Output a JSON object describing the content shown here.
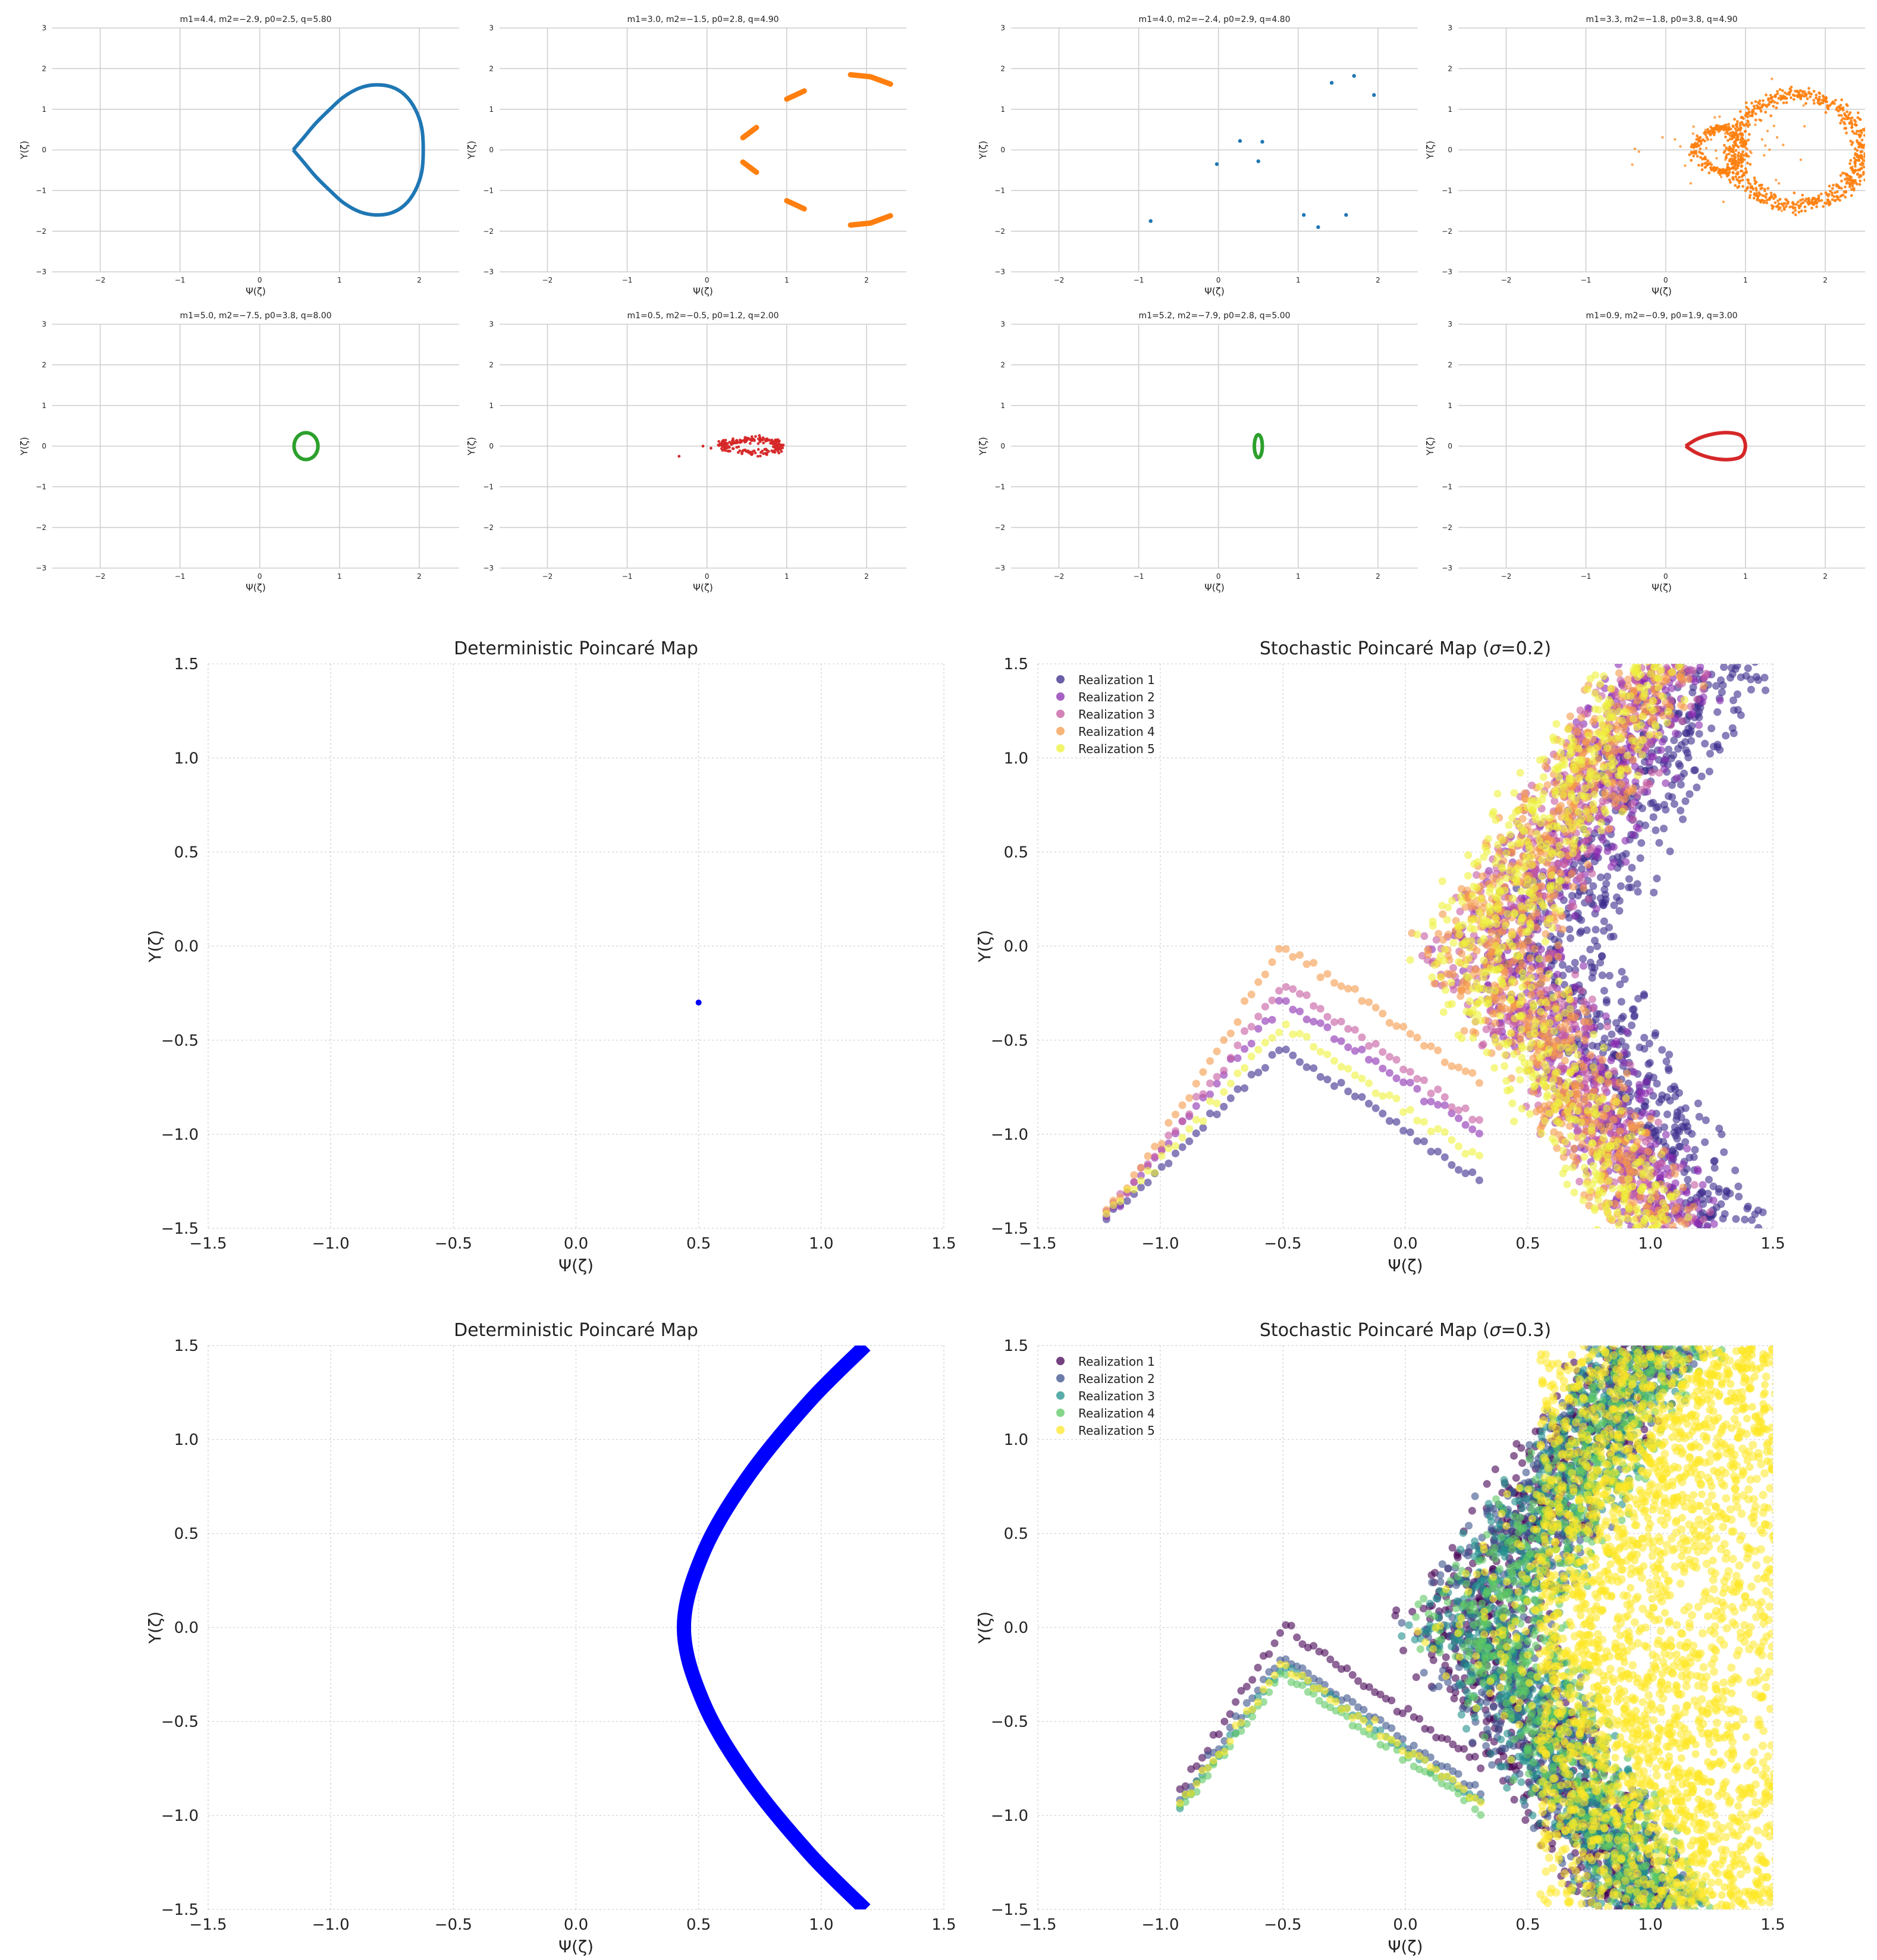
{
  "chart_data": [
    {
      "id": "small-1",
      "type": "scatter",
      "style": "curve",
      "title": "m1=4.4, m2=−2.9, p0=2.5, q=5.80",
      "xlabel": "Ψ(ζ)",
      "ylabel": "Y(ζ)",
      "xlim": [
        -2.6,
        2.5
      ],
      "ylim": [
        -3,
        3
      ],
      "xticks": [
        -2,
        -1,
        0,
        1,
        2
      ],
      "yticks": [
        -3,
        -2,
        -1,
        0,
        1,
        2,
        3
      ],
      "color": "#1f77b4",
      "grid": true,
      "points": [
        [
          0.42,
          0.0
        ],
        [
          0.55,
          0.3
        ],
        [
          0.7,
          0.65
        ],
        [
          0.88,
          1.0
        ],
        [
          1.05,
          1.3
        ],
        [
          1.25,
          1.52
        ],
        [
          1.45,
          1.6
        ],
        [
          1.65,
          1.55
        ],
        [
          1.82,
          1.35
        ],
        [
          1.95,
          1.0
        ],
        [
          2.03,
          0.55
        ],
        [
          2.05,
          0.0
        ],
        [
          2.03,
          -0.55
        ],
        [
          1.95,
          -1.0
        ],
        [
          1.82,
          -1.35
        ],
        [
          1.65,
          -1.55
        ],
        [
          1.45,
          -1.6
        ],
        [
          1.25,
          -1.52
        ],
        [
          1.05,
          -1.3
        ],
        [
          0.88,
          -1.0
        ],
        [
          0.7,
          -0.65
        ],
        [
          0.55,
          -0.3
        ],
        [
          0.42,
          0.0
        ]
      ]
    },
    {
      "id": "small-2",
      "type": "scatter",
      "style": "segments",
      "title": "m1=3.0, m2=−1.5, p0=2.8, q=4.90",
      "xlabel": "Ψ(ζ)",
      "ylabel": "Y(ζ)",
      "xlim": [
        -2.6,
        2.5
      ],
      "ylim": [
        -3,
        3
      ],
      "xticks": [
        -2,
        -1,
        0,
        1,
        2
      ],
      "yticks": [
        -3,
        -2,
        -1,
        0,
        1,
        2,
        3
      ],
      "color": "#ff7f0e",
      "grid": true,
      "segments": [
        [
          [
            0.45,
            0.3
          ],
          [
            0.62,
            0.55
          ]
        ],
        [
          [
            0.45,
            -0.3
          ],
          [
            0.62,
            -0.55
          ]
        ],
        [
          [
            1.0,
            1.25
          ],
          [
            1.22,
            1.45
          ]
        ],
        [
          [
            1.0,
            -1.25
          ],
          [
            1.22,
            -1.45
          ]
        ],
        [
          [
            1.8,
            1.85
          ],
          [
            2.05,
            1.8
          ],
          [
            2.3,
            1.62
          ]
        ],
        [
          [
            1.8,
            -1.85
          ],
          [
            2.05,
            -1.8
          ],
          [
            2.3,
            -1.62
          ]
        ]
      ]
    },
    {
      "id": "small-3",
      "type": "scatter",
      "style": "points",
      "title": "m1=4.0, m2=−2.4, p0=2.9, q=4.80",
      "xlabel": "Ψ(ζ)",
      "ylabel": "Y(ζ)",
      "xlim": [
        -2.6,
        2.5
      ],
      "ylim": [
        -3,
        3
      ],
      "xticks": [
        -2,
        -1,
        0,
        1,
        2
      ],
      "yticks": [
        -3,
        -2,
        -1,
        0,
        1,
        2,
        3
      ],
      "color": "#1f77b4",
      "grid": true,
      "points": [
        [
          -0.85,
          -1.75
        ],
        [
          -0.02,
          -0.35
        ],
        [
          0.27,
          0.22
        ],
        [
          0.5,
          -0.28
        ],
        [
          0.55,
          0.2
        ],
        [
          1.07,
          -1.6
        ],
        [
          1.25,
          -1.9
        ],
        [
          1.42,
          1.65
        ],
        [
          1.6,
          -1.6
        ],
        [
          1.7,
          1.82
        ],
        [
          1.95,
          1.35
        ]
      ]
    },
    {
      "id": "small-4",
      "type": "scatter",
      "style": "cloud",
      "title": "m1=3.3, m2=−1.8, p0=3.8, q=4.90",
      "xlabel": "Ψ(ζ)",
      "ylabel": "Y(ζ)",
      "xlim": [
        -2.6,
        2.5
      ],
      "ylim": [
        -3,
        3
      ],
      "xticks": [
        -2,
        -1,
        0,
        1,
        2
      ],
      "yticks": [
        -3,
        -2,
        -1,
        0,
        1,
        2,
        3
      ],
      "color": "#ff7f0e",
      "grid": true
    },
    {
      "id": "small-5",
      "type": "scatter",
      "style": "curve",
      "title": "m1=5.0, m2=−7.5, p0=3.8, q=8.00",
      "xlabel": "Ψ(ζ)",
      "ylabel": "Y(ζ)",
      "xlim": [
        -2.6,
        2.5
      ],
      "ylim": [
        -3,
        3
      ],
      "xticks": [
        -2,
        -1,
        0,
        1,
        2
      ],
      "yticks": [
        -3,
        -2,
        -1,
        0,
        1,
        2,
        3
      ],
      "color": "#2ca02c",
      "grid": true,
      "ellipse": {
        "cx": 0.58,
        "cy": 0.0,
        "rx": 0.15,
        "ry": 0.33
      }
    },
    {
      "id": "small-6",
      "type": "scatter",
      "style": "cloud-loop",
      "title": "m1=0.5, m2=−0.5, p0=1.2, q=2.00",
      "xlabel": "Ψ(ζ)",
      "ylabel": "Y(ζ)",
      "xlim": [
        -2.6,
        2.5
      ],
      "ylim": [
        -3,
        3
      ],
      "xticks": [
        -2,
        -1,
        0,
        1,
        2
      ],
      "yticks": [
        -3,
        -2,
        -1,
        0,
        1,
        2,
        3
      ],
      "color": "#d62728",
      "grid": true
    },
    {
      "id": "small-7",
      "type": "scatter",
      "style": "curve",
      "title": "m1=5.2, m2=−7.9, p0=2.8, q=5.00",
      "xlabel": "Ψ(ζ)",
      "ylabel": "Y(ζ)",
      "xlim": [
        -2.6,
        2.5
      ],
      "ylim": [
        -3,
        3
      ],
      "xticks": [
        -2,
        -1,
        0,
        1,
        2
      ],
      "yticks": [
        -3,
        -2,
        -1,
        0,
        1,
        2,
        3
      ],
      "color": "#2ca02c",
      "grid": true,
      "ellipse": {
        "cx": 0.5,
        "cy": 0.0,
        "rx": 0.05,
        "ry": 0.28
      }
    },
    {
      "id": "small-8",
      "type": "scatter",
      "style": "curve",
      "title": "m1=0.9, m2=−0.9, p0=1.9, q=3.00",
      "xlabel": "Ψ(ζ)",
      "ylabel": "Y(ζ)",
      "xlim": [
        -2.6,
        2.5
      ],
      "ylim": [
        -3,
        3
      ],
      "xticks": [
        -2,
        -1,
        0,
        1,
        2
      ],
      "yticks": [
        -3,
        -2,
        -1,
        0,
        1,
        2,
        3
      ],
      "color": "#d62728",
      "grid": true,
      "points": [
        [
          0.25,
          0.0
        ],
        [
          0.4,
          0.18
        ],
        [
          0.6,
          0.3
        ],
        [
          0.8,
          0.33
        ],
        [
          0.95,
          0.25
        ],
        [
          1.0,
          0.0
        ],
        [
          0.95,
          -0.25
        ],
        [
          0.8,
          -0.33
        ],
        [
          0.6,
          -0.3
        ],
        [
          0.4,
          -0.18
        ],
        [
          0.25,
          0.0
        ]
      ]
    },
    {
      "id": "big-1",
      "type": "scatter",
      "style": "single-point",
      "title": "Deterministic Poincaré Map",
      "xlabel": "Ψ(ζ)",
      "ylabel": "Y(ζ)",
      "xlim": [
        -1.5,
        1.5
      ],
      "ylim": [
        -1.5,
        1.5
      ],
      "xticks": [
        -1.5,
        -1.0,
        -0.5,
        0.0,
        0.5,
        1.0,
        1.5
      ],
      "yticks": [
        -1.5,
        -1.0,
        -0.5,
        0.0,
        0.5,
        1.0,
        1.5
      ],
      "xticklabels": [
        "−1.5",
        "−1.0",
        "−0.5",
        "0.0",
        "0.5",
        "1.0",
        "1.5"
      ],
      "yticklabels": [
        "−1.5",
        "−1.0",
        "−0.5",
        "0.0",
        "0.5",
        "1.0",
        "1.5"
      ],
      "color": "#0000ff",
      "grid": "dotted",
      "points": [
        [
          0.5,
          -0.3
        ]
      ]
    },
    {
      "id": "big-2",
      "type": "scatter",
      "style": "stochastic",
      "title": "Stochastic Poincaré Map (",
      "title_sigma": "σ",
      "title_rest": "=0.2)",
      "xlabel": "Ψ(ζ)",
      "ylabel": "Y(ζ)",
      "xlim": [
        -1.5,
        1.5
      ],
      "ylim": [
        -1.5,
        1.5
      ],
      "xticks": [
        -1.5,
        -1.0,
        -0.5,
        0.0,
        0.5,
        1.0,
        1.5
      ],
      "yticks": [
        -1.5,
        -1.0,
        -0.5,
        0.0,
        0.5,
        1.0,
        1.5
      ],
      "xticklabels": [
        "−1.5",
        "−1.0",
        "−0.5",
        "0.0",
        "0.5",
        "1.0",
        "1.5"
      ],
      "yticklabels": [
        "−1.5",
        "−1.0",
        "−0.5",
        "0.0",
        "0.5",
        "1.0",
        "1.5"
      ],
      "grid": "dotted",
      "legend": "top-left",
      "sigma": 0.2,
      "series": [
        {
          "name": "Realization 1",
          "color": "#3b2a8c"
        },
        {
          "name": "Realization 2",
          "color": "#8a2cb0"
        },
        {
          "name": "Realization 3",
          "color": "#c45aa0"
        },
        {
          "name": "Realization 4",
          "color": "#f59a4a"
        },
        {
          "name": "Realization 5",
          "color": "#eef23a"
        }
      ]
    },
    {
      "id": "big-3",
      "type": "scatter",
      "style": "band",
      "title": "Deterministic Poincaré Map",
      "xlabel": "Ψ(ζ)",
      "ylabel": "Y(ζ)",
      "xlim": [
        -1.5,
        1.5
      ],
      "ylim": [
        -1.5,
        1.5
      ],
      "xticks": [
        -1.5,
        -1.0,
        -0.5,
        0.0,
        0.5,
        1.0,
        1.5
      ],
      "yticks": [
        -1.5,
        -1.0,
        -0.5,
        0.0,
        0.5,
        1.0,
        1.5
      ],
      "xticklabels": [
        "−1.5",
        "−1.0",
        "−0.5",
        "0.0",
        "0.5",
        "1.0",
        "1.5"
      ],
      "yticklabels": [
        "−1.5",
        "−1.0",
        "−0.5",
        "0.0",
        "0.5",
        "1.0",
        "1.5"
      ],
      "color": "#0000ff",
      "grid": "dotted",
      "points": [
        [
          1.18,
          1.5
        ],
        [
          0.95,
          1.2
        ],
        [
          0.7,
          0.8
        ],
        [
          0.52,
          0.4
        ],
        [
          0.44,
          0.0
        ],
        [
          0.52,
          -0.4
        ],
        [
          0.7,
          -0.8
        ],
        [
          0.95,
          -1.2
        ],
        [
          1.18,
          -1.5
        ]
      ]
    },
    {
      "id": "big-4",
      "type": "scatter",
      "style": "stochastic",
      "title": "Stochastic Poincaré Map (",
      "title_sigma": "σ",
      "title_rest": "=0.3)",
      "xlabel": "Ψ(ζ)",
      "ylabel": "Y(ζ)",
      "xlim": [
        -1.5,
        1.5
      ],
      "ylim": [
        -1.5,
        1.5
      ],
      "xticks": [
        -1.5,
        -1.0,
        -0.5,
        0.0,
        0.5,
        1.0,
        1.5
      ],
      "yticks": [
        -1.5,
        -1.0,
        -0.5,
        0.0,
        0.5,
        1.0,
        1.5
      ],
      "xticklabels": [
        "−1.5",
        "−1.0",
        "−0.5",
        "0.0",
        "0.5",
        "1.0",
        "1.5"
      ],
      "yticklabels": [
        "−1.5",
        "−1.0",
        "−0.5",
        "0.0",
        "0.5",
        "1.0",
        "1.5"
      ],
      "grid": "dotted",
      "legend": "top-left",
      "sigma": 0.3,
      "series": [
        {
          "name": "Realization 1",
          "color": "#440154"
        },
        {
          "name": "Realization 2",
          "color": "#3b528b"
        },
        {
          "name": "Realization 3",
          "color": "#21908c"
        },
        {
          "name": "Realization 4",
          "color": "#5dc863"
        },
        {
          "name": "Realization 5",
          "color": "#fde725"
        }
      ]
    }
  ]
}
